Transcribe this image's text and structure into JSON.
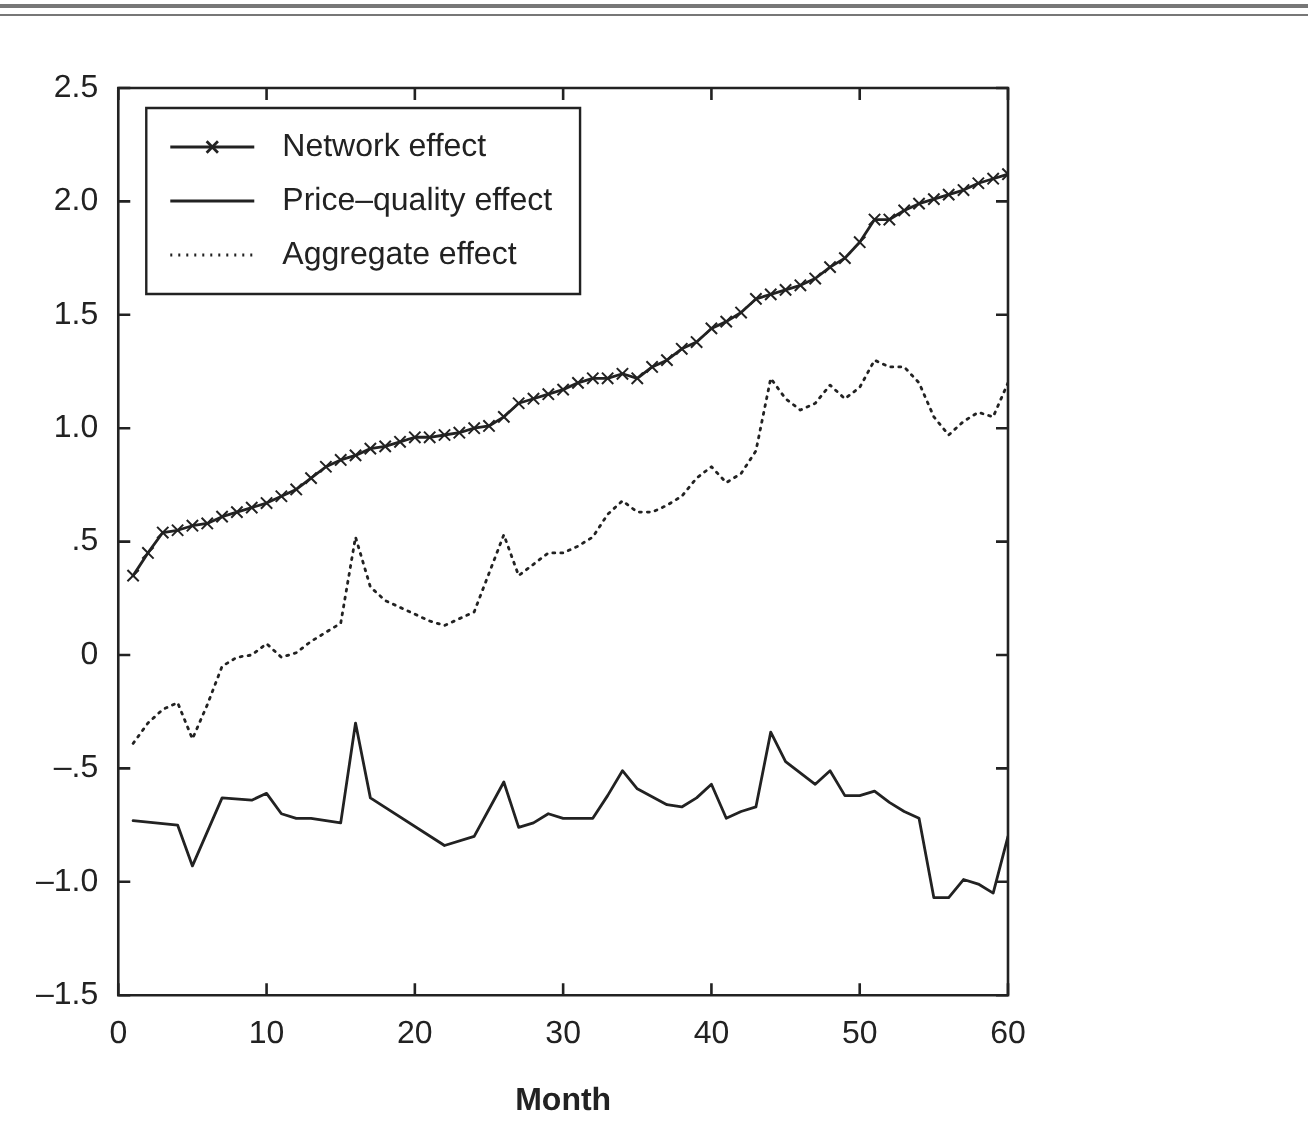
{
  "chart_data": {
    "type": "line",
    "xlabel": "Month",
    "xlim": [
      0,
      60
    ],
    "xticks": [
      0,
      10,
      20,
      30,
      40,
      50,
      60
    ],
    "ylim": [
      -1.5,
      2.5
    ],
    "yticks": [
      {
        "value": 2.5,
        "label": "2.5"
      },
      {
        "value": 2,
        "label": "2.0"
      },
      {
        "value": 1.5,
        "label": "1.5"
      },
      {
        "value": 1,
        "label": "1.0"
      },
      {
        "value": 0.5,
        "label": ".5"
      },
      0,
      {
        "value": -0.5,
        "label": "–.5"
      },
      {
        "value": -1,
        "label": "–1.0"
      },
      {
        "value": -1.5,
        "label": "–1.5"
      }
    ],
    "grid": false,
    "legend": "top left",
    "series": [
      {
        "name": "Network effect",
        "color": "#222222",
        "marker": "cross",
        "line_style": "solid",
        "x": [
          1,
          2,
          3,
          4,
          5,
          6,
          7,
          8,
          9,
          10,
          11,
          12,
          13,
          14,
          15,
          16,
          17,
          18,
          19,
          20,
          21,
          22,
          23,
          24,
          25,
          26,
          27,
          28,
          29,
          30,
          31,
          32,
          33,
          34,
          35,
          36,
          37,
          38,
          39,
          40,
          41,
          42,
          43,
          44,
          45,
          46,
          47,
          48,
          49,
          50,
          51,
          52,
          53,
          54,
          55,
          56,
          57,
          58,
          59,
          60
        ],
        "values": [
          0.35,
          0.45,
          0.54,
          0.55,
          0.57,
          0.58,
          0.61,
          0.63,
          0.65,
          0.67,
          0.7,
          0.73,
          0.78,
          0.83,
          0.86,
          0.88,
          0.91,
          0.92,
          0.94,
          0.96,
          0.96,
          0.97,
          0.98,
          1.0,
          1.01,
          1.05,
          1.11,
          1.13,
          1.15,
          1.17,
          1.2,
          1.22,
          1.22,
          1.24,
          1.22,
          1.27,
          1.3,
          1.35,
          1.38,
          1.44,
          1.47,
          1.51,
          1.57,
          1.59,
          1.61,
          1.63,
          1.66,
          1.71,
          1.75,
          1.82,
          1.92,
          1.92,
          1.96,
          1.99,
          2.01,
          2.03,
          2.05,
          2.08,
          2.1,
          2.12
        ]
      },
      {
        "name": "Price–quality effect",
        "color": "#222222",
        "marker": "none",
        "line_style": "solid",
        "x": [
          1,
          4,
          5,
          7,
          9,
          10,
          11,
          12,
          13,
          15,
          16,
          17,
          22,
          24,
          25,
          26,
          27,
          28,
          29,
          30,
          32,
          33,
          34,
          35,
          37,
          38,
          39,
          40,
          41,
          42,
          43,
          44,
          45,
          47,
          48,
          49,
          50,
          51,
          52,
          53,
          54,
          55,
          56,
          57,
          58,
          59,
          60
        ],
        "values": [
          -0.73,
          -0.75,
          -0.93,
          -0.63,
          -0.64,
          -0.61,
          -0.7,
          -0.72,
          -0.72,
          -0.74,
          -0.3,
          -0.63,
          -0.84,
          -0.8,
          -0.68,
          -0.56,
          -0.76,
          -0.74,
          -0.7,
          -0.72,
          -0.72,
          -0.62,
          -0.51,
          -0.59,
          -0.66,
          -0.67,
          -0.63,
          -0.57,
          -0.72,
          -0.69,
          -0.67,
          -0.34,
          -0.47,
          -0.57,
          -0.51,
          -0.62,
          -0.62,
          -0.6,
          -0.65,
          -0.69,
          -0.72,
          -1.07,
          -1.07,
          -0.99,
          -1.01,
          -1.05,
          -0.8
        ]
      },
      {
        "name": "Aggregate effect",
        "color": "#222222",
        "marker": "none",
        "line_style": "dotted",
        "x": [
          1,
          2,
          3,
          4,
          5,
          6,
          7,
          8,
          9,
          10,
          11,
          12,
          13,
          14,
          15,
          16,
          17,
          18,
          19,
          20,
          21,
          22,
          23,
          24,
          25,
          26,
          27,
          28,
          29,
          30,
          31,
          32,
          33,
          34,
          35,
          36,
          37,
          38,
          39,
          40,
          41,
          42,
          43,
          44,
          45,
          46,
          47,
          48,
          49,
          50,
          51,
          52,
          53,
          54,
          55,
          56,
          57,
          58,
          59,
          60
        ],
        "values": [
          -0.39,
          -0.3,
          -0.24,
          -0.21,
          -0.37,
          -0.22,
          -0.05,
          -0.01,
          0.0,
          0.05,
          -0.01,
          0.01,
          0.06,
          0.1,
          0.14,
          0.52,
          0.3,
          0.24,
          0.21,
          0.18,
          0.15,
          0.13,
          0.16,
          0.19,
          0.36,
          0.53,
          0.35,
          0.4,
          0.45,
          0.45,
          0.48,
          0.52,
          0.62,
          0.68,
          0.63,
          0.63,
          0.66,
          0.7,
          0.78,
          0.83,
          0.76,
          0.8,
          0.9,
          1.22,
          1.13,
          1.08,
          1.11,
          1.19,
          1.13,
          1.18,
          1.3,
          1.27,
          1.27,
          1.2,
          1.05,
          0.97,
          1.03,
          1.07,
          1.05,
          1.2
        ]
      }
    ]
  }
}
